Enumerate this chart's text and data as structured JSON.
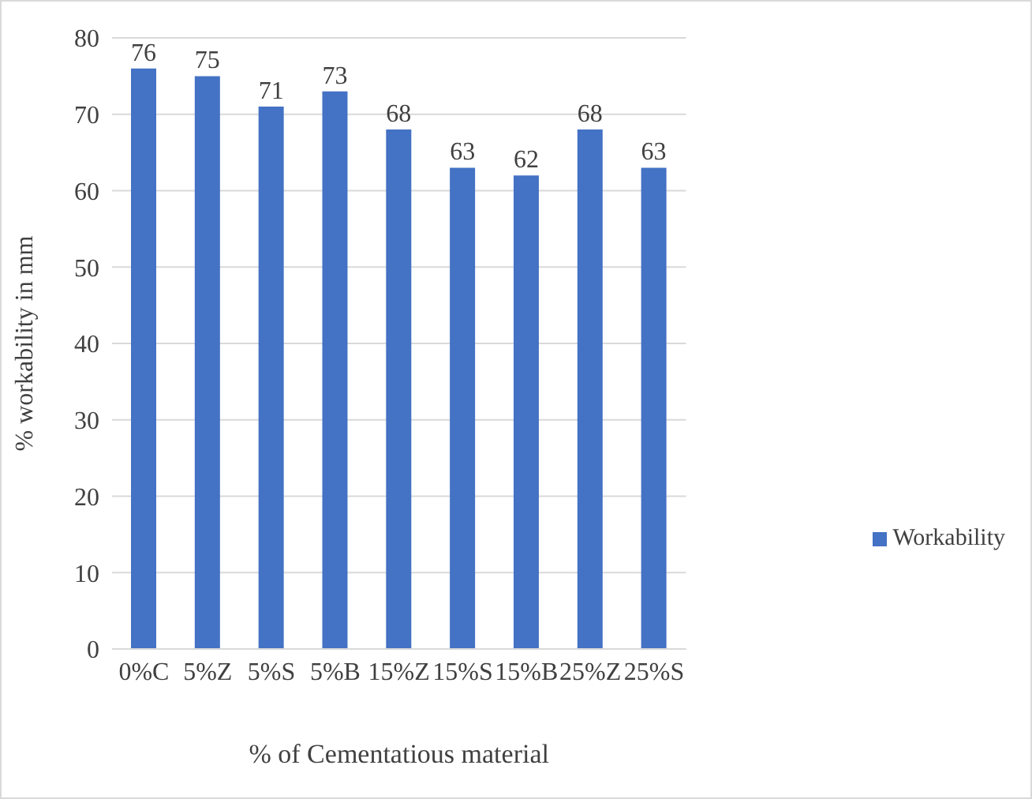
{
  "chart_data": {
    "type": "bar",
    "xlabel": "% of Cementatious material",
    "ylabel": "% workability in mm",
    "categories": [
      "0%C",
      "5%Z",
      "5%S",
      "5%B",
      "15%Z",
      "15%S",
      "15%B",
      "25%Z",
      "25%S"
    ],
    "series": [
      {
        "name": "Workability",
        "color": "#4472c4",
        "values": [
          76,
          75,
          71,
          73,
          68,
          63,
          62,
          68,
          63
        ]
      }
    ],
    "ylim": [
      0,
      80
    ],
    "yticks": [
      0,
      10,
      20,
      30,
      40,
      50,
      60,
      70,
      80
    ],
    "grid": "y",
    "legend": "right",
    "data_labels": true
  }
}
